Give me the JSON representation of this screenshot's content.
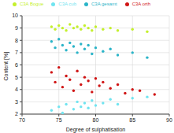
{
  "chart_data": {
    "type": "scatter",
    "x_label": "Degree of sulphatisation",
    "y_label": "Content [%]",
    "xlim": [
      70,
      90
    ],
    "xticks": [
      70,
      75,
      80,
      85,
      90
    ],
    "ylim": [
      2,
      10
    ],
    "yticks": [
      2,
      3,
      4,
      5,
      6,
      7,
      8,
      9,
      10
    ],
    "grid": true,
    "legend": "top",
    "marker": "circle",
    "series": [
      {
        "name": "C3A gesamt",
        "color": "#2ab4c8",
        "x": [
          74,
          74.5,
          75,
          75.5,
          76,
          76.5,
          77,
          77.5,
          78,
          78.5,
          79,
          79.5,
          80,
          81,
          82,
          83,
          85,
          87
        ],
        "values": [
          7.9,
          7.4,
          8.1,
          7.6,
          7.2,
          7.8,
          7.5,
          7.0,
          7.7,
          7.3,
          7.6,
          6.9,
          7.4,
          7.1,
          7.3,
          6.8,
          7.0,
          6.6
        ]
      },
      {
        "name": "C3A Bogue",
        "color": "#c4f02c",
        "x": [
          74,
          74.5,
          75,
          75.5,
          76,
          76.5,
          77,
          77.5,
          78,
          78.5,
          79,
          79.5,
          80,
          81,
          82,
          83,
          85,
          87
        ],
        "values": [
          9.1,
          8.9,
          9.2,
          9.0,
          8.8,
          9.3,
          9.0,
          9.1,
          8.9,
          9.2,
          9.0,
          8.8,
          9.1,
          8.9,
          9.0,
          8.8,
          8.9,
          8.7
        ]
      },
      {
        "name": "C3A cub",
        "color": "#70e4f0",
        "x": [
          74,
          75,
          75.5,
          76,
          77,
          77.5,
          78,
          78.5,
          79,
          79.5,
          80,
          81,
          82,
          83,
          85,
          87
        ],
        "values": [
          2.3,
          2.6,
          2.1,
          2.8,
          2.4,
          3.0,
          2.6,
          2.9,
          2.5,
          3.1,
          2.7,
          2.9,
          3.2,
          2.8,
          3.3,
          3.4
        ]
      },
      {
        "name": "C3A orth",
        "color": "#d01414",
        "x": [
          74,
          74.5,
          75,
          75.5,
          76,
          76.5,
          77,
          77.5,
          78,
          78.5,
          79,
          79.5,
          80,
          80.5,
          81,
          82,
          83,
          84,
          85,
          86,
          88
        ],
        "values": [
          5.4,
          4.6,
          5.8,
          4.2,
          5.1,
          4.8,
          3.9,
          5.5,
          4.4,
          5.0,
          4.7,
          3.8,
          4.9,
          4.3,
          4.6,
          4.1,
          4.4,
          3.7,
          4.0,
          3.9,
          3.6
        ]
      }
    ]
  }
}
